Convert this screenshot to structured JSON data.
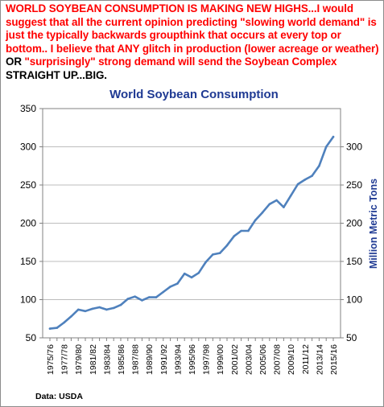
{
  "headline": {
    "part1": "WORLD SOYBEAN CONSUMPTION  IS MAKING NEW HIGHS...I would suggest that all the current opinion predicting \"slowing world demand\" is just the typically backwards groupthink that occurs at every top or bottom.. I believe that ANY glitch in production (lower acreage or weather) ",
    "or_word": "OR",
    "part2": " \"surprisingly\" strong demand will send the Soybean Complex ",
    "emphasis": "STRAIGHT UP...BIG."
  },
  "source": "Data: USDA",
  "colors": {
    "line": "#4f81bd",
    "headline": "#ff0000",
    "title": "#1f3a93",
    "grid": "#bdbdbd",
    "axis": "#808080"
  },
  "chart_data": {
    "type": "line",
    "title": "World Soybean Consumption",
    "xlabel": "",
    "ylabel": "Million Metric Tons",
    "ylim": [
      50,
      350
    ],
    "yticks": [
      50,
      100,
      150,
      200,
      250,
      300,
      350
    ],
    "right_axis_ticks": [
      50,
      100,
      150,
      200,
      250,
      300
    ],
    "grid": "horizontal",
    "legend": "none",
    "categories": [
      "1975/76",
      "1976/77",
      "1977/78",
      "1978/79",
      "1979/80",
      "1980/81",
      "1981/82",
      "1982/83",
      "1983/84",
      "1984/85",
      "1985/86",
      "1986/87",
      "1987/88",
      "1988/89",
      "1989/90",
      "1990/91",
      "1991/92",
      "1992/93",
      "1993/94",
      "1994/95",
      "1995/96",
      "1996/97",
      "1997/98",
      "1998/99",
      "1999/00",
      "2000/01",
      "2001/02",
      "2002/03",
      "2003/04",
      "2004/05",
      "2005/06",
      "2006/07",
      "2007/08",
      "2008/09",
      "2009/10",
      "2010/11",
      "2011/12",
      "2012/13",
      "2013/14",
      "2014/15",
      "2015/16"
    ],
    "shown_labels": [
      "1975/76",
      "1977/78",
      "1979/80",
      "1981/82",
      "1983/84",
      "1985/86",
      "1987/88",
      "1989/90",
      "1991/92",
      "1993/94",
      "1995/96",
      "1997/98",
      "1999/00",
      "2001/02",
      "2003/04",
      "2005/06",
      "2007/08",
      "2009/10",
      "2011/12",
      "2013/14",
      "2015/16"
    ],
    "values": [
      62,
      63,
      70,
      78,
      87,
      85,
      88,
      90,
      87,
      89,
      93,
      101,
      104,
      99,
      103,
      103,
      110,
      117,
      121,
      134,
      129,
      135,
      149,
      159,
      161,
      171,
      183,
      190,
      190,
      204,
      214,
      225,
      230,
      221,
      236,
      251,
      257,
      262,
      275,
      300,
      313
    ]
  }
}
